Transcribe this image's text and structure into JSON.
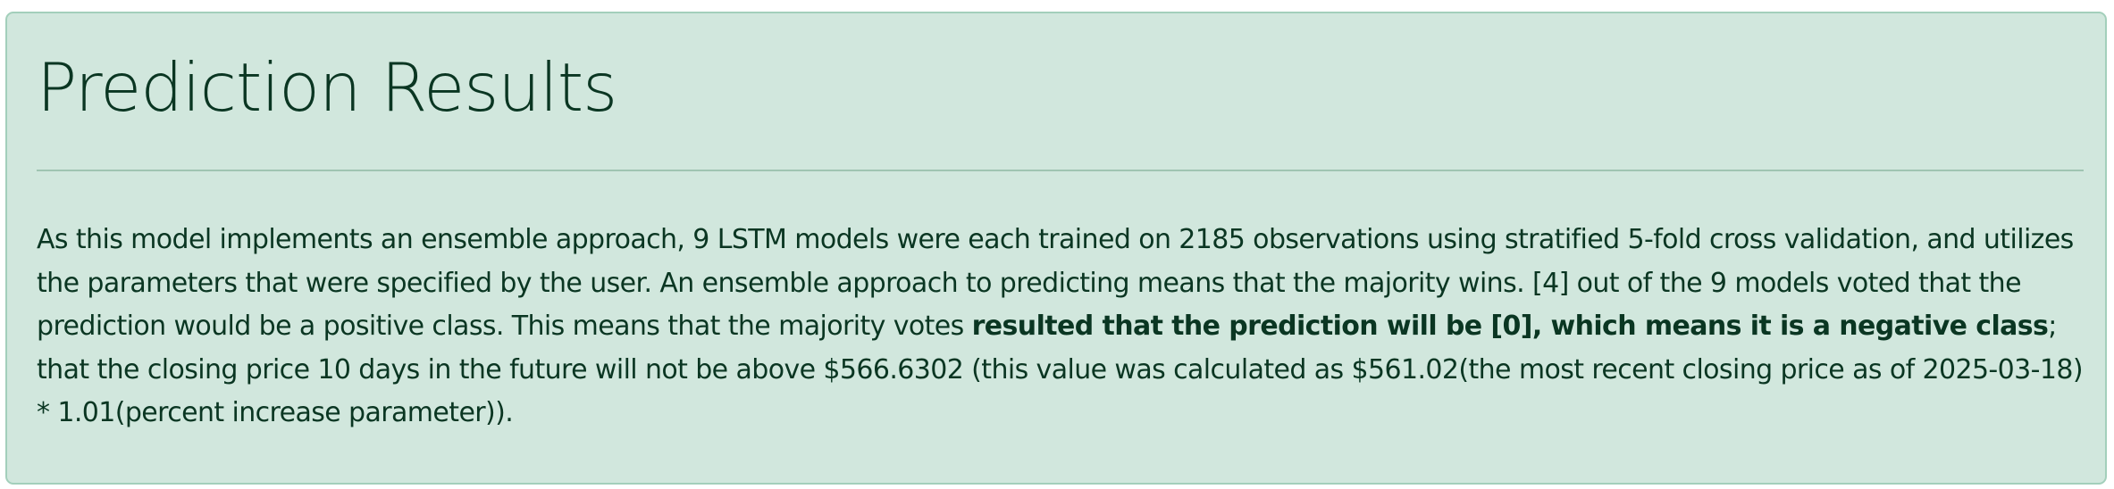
{
  "alert": {
    "heading": "Prediction Results",
    "message": {
      "part1": "As this model implements an ensemble approach, 9 LSTM models were each trained on 2185 observations using stratified 5-fold cross validation, and utilizes the parameters that were specified by the user. An ensemble approach to predicting means that the majority wins. [4] out of the 9 models voted that the prediction would be a positive class. This means that the majority votes ",
      "emphasis": "resulted that the prediction will be [0], which means it is a negative class",
      "part2": "; that the closing price 10 days in the future will not be above $566.6302 (this value was calculated as $561.02(the most recent closing price as of 2025-03-18) * 1.01(percent increase parameter))."
    }
  },
  "colors": {
    "background": "#d1e7dd",
    "border": "#a3cfbb",
    "text": "#0a3622",
    "divider": "#9fc4b2"
  }
}
